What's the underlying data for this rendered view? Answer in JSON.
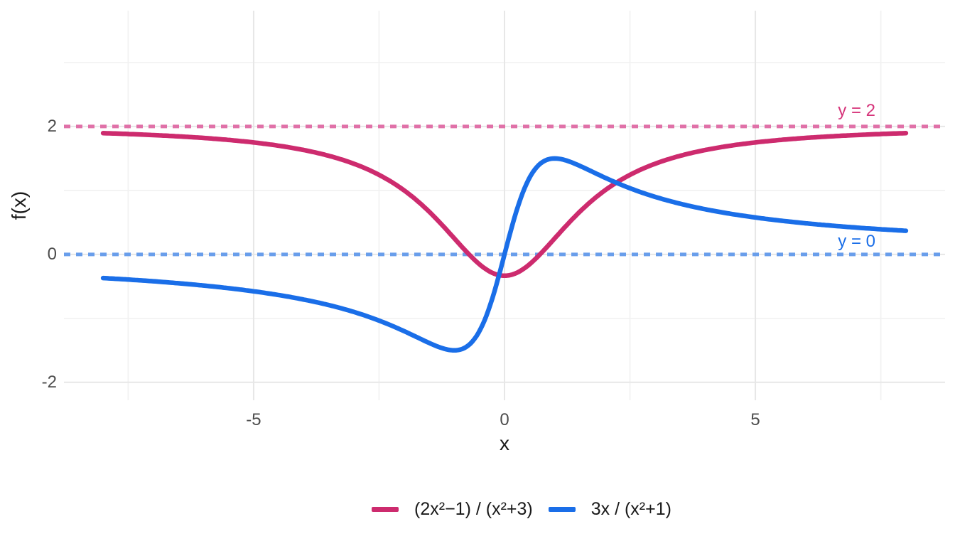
{
  "figure": {
    "background": "#FFFFFF",
    "grid_major_color": "#E7E7E7",
    "grid_minor_color": "#F1F1F1"
  },
  "chart_data": {
    "type": "line",
    "title": "",
    "xlabel": "x",
    "ylabel": "f(x)",
    "xlim": [
      -8.78,
      8.78
    ],
    "ylim": [
      -2.28,
      3.81
    ],
    "x_domain": [
      -8,
      8
    ],
    "x_ticks": [
      -5,
      0,
      5
    ],
    "x_tick_labels": [
      "-5",
      "0",
      "5"
    ],
    "x_minor_ticks": [
      -7.5,
      -2.5,
      2.5,
      7.5
    ],
    "y_ticks": [
      -2,
      0,
      2
    ],
    "y_tick_labels": [
      "-2",
      "0",
      "2"
    ],
    "y_minor_ticks": [
      -1,
      1,
      3
    ],
    "grid": true,
    "legend_position": "bottom",
    "series": [
      {
        "name": "(2x²−1) / (x²+3)",
        "expr": "(2*x*x-1)/(x*x+3)",
        "color": "#CD2B6E"
      },
      {
        "name": "3x / (x²+1)",
        "expr": "(3*x)/(x*x+1)",
        "color": "#1A6EE8"
      }
    ],
    "asymptotes": [
      {
        "label": "y = 2",
        "y": 2,
        "line_color": "#E071A8",
        "label_color": "#D6347A"
      },
      {
        "label": "y = 0",
        "y": 0,
        "line_color": "#699EEB",
        "label_color": "#1A6EE8"
      }
    ],
    "samples": {
      "x": [
        -8,
        -7.5,
        -7,
        -6.5,
        -6,
        -5.5,
        -5,
        -4.5,
        -4,
        -3.5,
        -3,
        -2.5,
        -2,
        -1.5,
        -1,
        -0.5,
        0,
        0.5,
        1,
        1.5,
        2,
        2.5,
        3,
        3.5,
        4,
        4.5,
        5,
        5.5,
        6,
        6.5,
        7,
        7.5,
        8
      ],
      "series": [
        {
          "name": "(2x²−1) / (x²+3)",
          "y": [
            1.896,
            1.882,
            1.865,
            1.845,
            1.821,
            1.789,
            1.75,
            1.699,
            1.632,
            1.541,
            1.417,
            1.243,
            1.0,
            0.667,
            0.25,
            -0.154,
            -0.333,
            -0.154,
            0.25,
            0.667,
            1.0,
            1.243,
            1.417,
            1.541,
            1.632,
            1.699,
            1.75,
            1.789,
            1.821,
            1.845,
            1.865,
            1.882,
            1.896
          ]
        },
        {
          "name": "3x / (x²+1)",
          "y": [
            -0.369,
            -0.393,
            -0.42,
            -0.451,
            -0.486,
            -0.528,
            -0.577,
            -0.635,
            -0.706,
            -0.792,
            -0.9,
            -1.034,
            -1.2,
            -1.385,
            -1.5,
            -1.2,
            0,
            1.2,
            1.5,
            1.385,
            1.2,
            1.034,
            0.9,
            0.792,
            0.706,
            0.635,
            0.577,
            0.528,
            0.486,
            0.451,
            0.42,
            0.393,
            0.369
          ]
        }
      ]
    }
  }
}
